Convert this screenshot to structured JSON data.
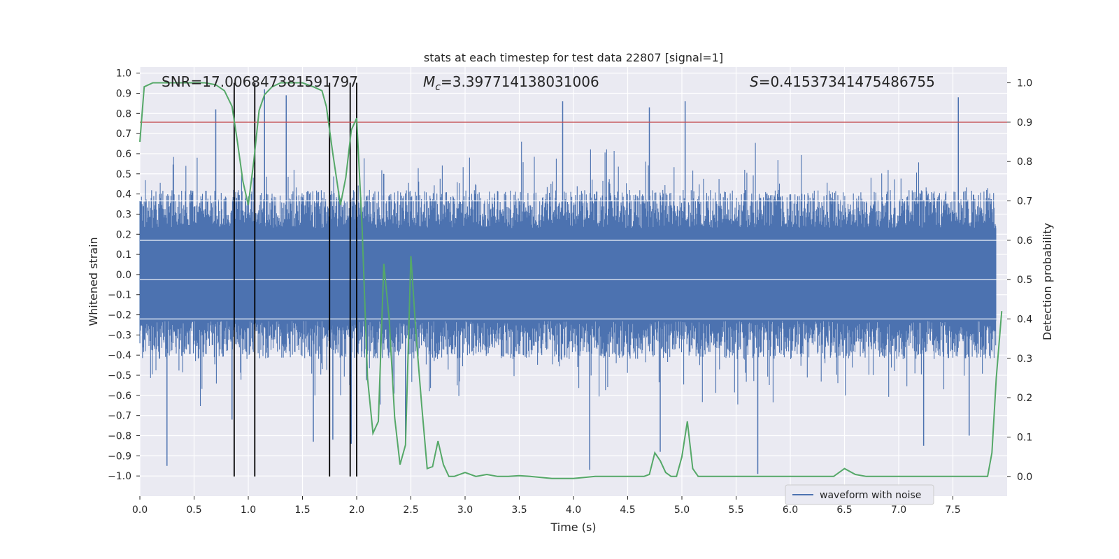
{
  "chart_data": {
    "type": "line",
    "title": "stats at each timestep for test data 22807 [signal=1]",
    "xlabel": "Time (s)",
    "ylabel_left": "Whitened strain",
    "ylabel_right": "Detection probability",
    "xlim": [
      0.0,
      8.0
    ],
    "ylim_left": [
      -1.1,
      1.03
    ],
    "ylim_right": [
      -0.05,
      1.04
    ],
    "x_ticks": [
      "0.0",
      "0.5",
      "1.0",
      "1.5",
      "2.0",
      "2.5",
      "3.0",
      "3.5",
      "4.0",
      "4.5",
      "5.0",
      "5.5",
      "6.0",
      "6.5",
      "7.0",
      "7.5"
    ],
    "y_ticks_left": [
      "1.0",
      "0.9",
      "0.8",
      "0.7",
      "0.6",
      "0.5",
      "0.4",
      "0.3",
      "0.2",
      "0.1",
      "0.0",
      "−0.1",
      "−0.2",
      "−0.3",
      "−0.4",
      "−0.5",
      "−0.6",
      "−0.7",
      "−0.8",
      "−0.9",
      "−1.0"
    ],
    "y_ticks_right": [
      "1.0",
      "0.9",
      "0.8",
      "0.7",
      "0.6",
      "0.5",
      "0.4",
      "0.3",
      "0.2",
      "0.1",
      "0.0"
    ],
    "annotations": {
      "snr": "SNR=17.006847381591797",
      "mc_symbol": "M",
      "mc_sub": "c",
      "mc_value": "=3.397714138031006",
      "s_symbol": "S",
      "s_value": "=0.41537341475486755"
    },
    "threshold": 0.9,
    "vlines": [
      0.87,
      1.06,
      1.75,
      1.94,
      2.0
    ],
    "waveform": {
      "name": "waveform with noise",
      "envelope_pos": 0.42,
      "envelope_neg": -0.42,
      "peaks": [
        [
          0.25,
          -0.95
        ],
        [
          0.7,
          0.82
        ],
        [
          0.85,
          -0.72
        ],
        [
          1.15,
          0.92
        ],
        [
          1.35,
          0.89
        ],
        [
          1.6,
          -0.83
        ],
        [
          1.78,
          -0.82
        ],
        [
          1.95,
          -0.84
        ],
        [
          2.25,
          0.5
        ],
        [
          2.45,
          -0.82
        ],
        [
          3.9,
          0.86
        ],
        [
          4.15,
          -0.97
        ],
        [
          4.7,
          0.83
        ],
        [
          4.8,
          -0.88
        ],
        [
          5.03,
          0.86
        ],
        [
          5.7,
          -0.99
        ],
        [
          7.23,
          -0.85
        ],
        [
          7.55,
          0.88
        ],
        [
          7.65,
          -0.8
        ]
      ]
    },
    "probability": {
      "x": [
        0.0,
        0.04,
        0.12,
        0.2,
        0.35,
        0.5,
        0.6,
        0.7,
        0.78,
        0.85,
        0.9,
        0.95,
        1.0,
        1.05,
        1.1,
        1.15,
        1.22,
        1.3,
        1.4,
        1.5,
        1.6,
        1.68,
        1.72,
        1.78,
        1.85,
        1.9,
        1.95,
        2.0,
        2.05,
        2.1,
        2.15,
        2.2,
        2.25,
        2.3,
        2.35,
        2.4,
        2.45,
        2.5,
        2.55,
        2.6,
        2.65,
        2.7,
        2.75,
        2.8,
        2.85,
        2.9,
        3.0,
        3.1,
        3.2,
        3.3,
        3.4,
        3.5,
        3.6,
        3.8,
        4.0,
        4.2,
        4.4,
        4.5,
        4.6,
        4.65,
        4.7,
        4.75,
        4.8,
        4.85,
        4.9,
        4.95,
        5.0,
        5.05,
        5.1,
        5.15,
        5.2,
        5.3,
        5.4,
        5.5,
        5.6,
        5.7,
        5.8,
        6.0,
        6.2,
        6.4,
        6.5,
        6.6,
        6.7,
        6.8,
        6.9,
        7.0,
        7.1,
        7.2,
        7.4,
        7.6,
        7.7,
        7.78,
        7.82,
        7.86,
        7.9,
        7.95
      ],
      "y": [
        0.85,
        0.99,
        1.0,
        1.0,
        1.0,
        1.0,
        1.0,
        0.995,
        0.98,
        0.94,
        0.85,
        0.75,
        0.69,
        0.8,
        0.93,
        0.97,
        0.99,
        1.0,
        1.0,
        1.0,
        0.99,
        0.98,
        0.94,
        0.82,
        0.69,
        0.76,
        0.88,
        0.91,
        0.63,
        0.25,
        0.11,
        0.14,
        0.54,
        0.4,
        0.15,
        0.03,
        0.08,
        0.56,
        0.35,
        0.18,
        0.02,
        0.025,
        0.09,
        0.03,
        0.0,
        0.0,
        0.01,
        0.0,
        0.005,
        0.0,
        0.0,
        0.002,
        0.0,
        -0.005,
        -0.005,
        0.0,
        0.0,
        0.0,
        0.0,
        0.0,
        0.005,
        0.06,
        0.04,
        0.01,
        0.0,
        0.0,
        0.05,
        0.14,
        0.02,
        0.0,
        0.0,
        0.0,
        0.0,
        0.0,
        0.0,
        0.0,
        0.0,
        0.0,
        0.0,
        0.0,
        0.02,
        0.005,
        0.0,
        0.0,
        0.0,
        0.0,
        0.0,
        0.0,
        0.0,
        0.0,
        0.0,
        0.0,
        0.0,
        0.06,
        0.25,
        0.42
      ]
    }
  }
}
